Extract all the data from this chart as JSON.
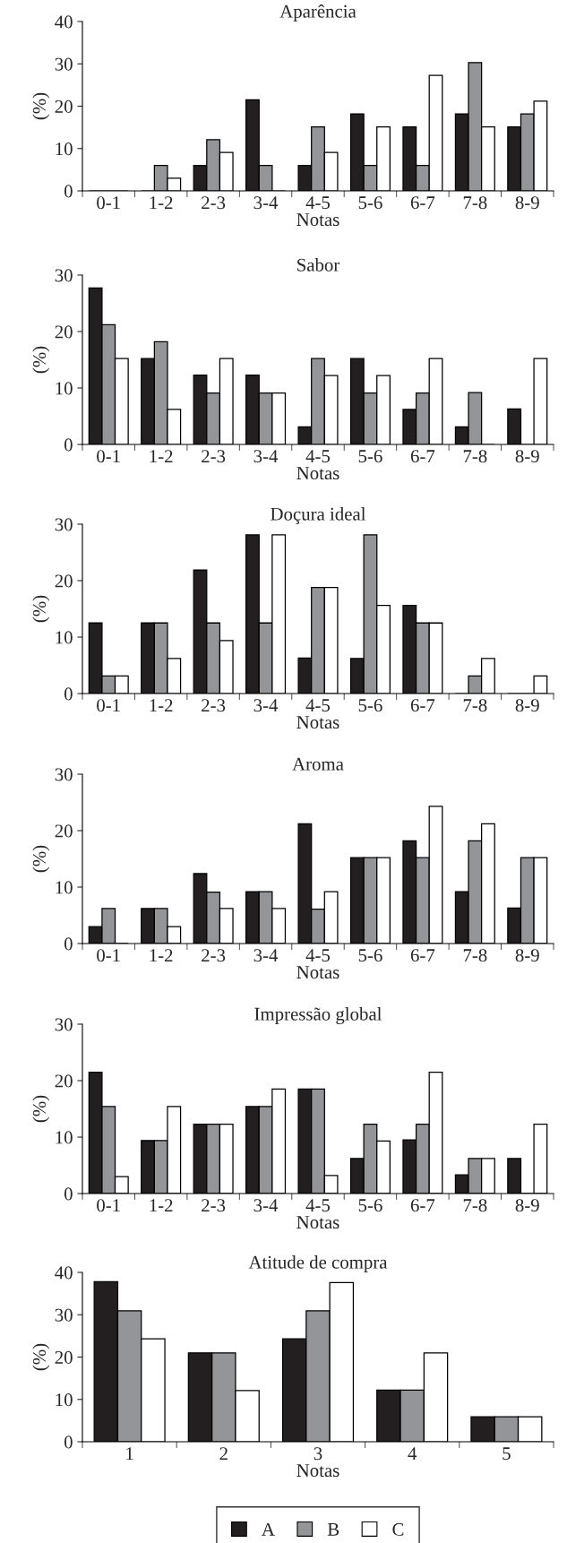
{
  "chart_data": [
    {
      "type": "bar",
      "title": "Aparência",
      "xlabel": "Notas",
      "ylabel": "(%)",
      "categories": [
        "0-1",
        "1-2",
        "2-3",
        "3-4",
        "4-5",
        "5-6",
        "6-7",
        "7-8",
        "8-9"
      ],
      "ylim": [
        0,
        40
      ],
      "yticks": [
        0,
        10,
        20,
        30,
        40
      ],
      "grid": false,
      "series": [
        {
          "color": "#231f20",
          "values": [
            0,
            0,
            6,
            21.5,
            6,
            18.2,
            15.1,
            18.2,
            15.1
          ]
        },
        {
          "color": "#939598",
          "values": [
            0,
            6,
            12.1,
            6,
            15.1,
            6,
            6,
            30.3,
            18.2
          ]
        },
        {
          "color": "#ffffff",
          "values": [
            0,
            3,
            9.1,
            0,
            9.1,
            15.1,
            27.3,
            15.1,
            21.2
          ]
        }
      ]
    },
    {
      "type": "bar",
      "title": "Sabor",
      "xlabel": "Notas",
      "ylabel": "(%)",
      "categories": [
        "0-1",
        "1-2",
        "2-3",
        "3-4",
        "4-5",
        "5-6",
        "6-7",
        "7-8",
        "8-9"
      ],
      "ylim": [
        0,
        30
      ],
      "yticks": [
        0,
        10,
        20,
        30
      ],
      "grid": false,
      "series": [
        {
          "color": "#231f20",
          "values": [
            27.7,
            15.2,
            12.3,
            12.3,
            3.1,
            15.2,
            6.2,
            3.1,
            6.3
          ]
        },
        {
          "color": "#939598",
          "values": [
            21.2,
            18.2,
            9.1,
            9.1,
            15.2,
            9.1,
            9.1,
            9.2,
            0
          ]
        },
        {
          "color": "#ffffff",
          "values": [
            15.2,
            6.2,
            15.2,
            9.1,
            12.2,
            12.2,
            15.2,
            0,
            15.2
          ]
        }
      ]
    },
    {
      "type": "bar",
      "title": "Doçura ideal",
      "xlabel": "Notas",
      "ylabel": "(%)",
      "categories": [
        "0-1",
        "1-2",
        "2-3",
        "3-4",
        "4-5",
        "5-6",
        "6-7",
        "7-8",
        "8-9"
      ],
      "ylim": [
        0,
        30
      ],
      "yticks": [
        0,
        10,
        20,
        30
      ],
      "grid": false,
      "series": [
        {
          "color": "#231f20",
          "values": [
            12.5,
            12.5,
            21.9,
            28.1,
            6.3,
            6.2,
            15.6,
            0,
            0
          ]
        },
        {
          "color": "#939598",
          "values": [
            3.1,
            12.5,
            12.5,
            12.5,
            18.8,
            28.1,
            12.5,
            3.1,
            0
          ]
        },
        {
          "color": "#ffffff",
          "values": [
            3.1,
            6.2,
            9.4,
            28.1,
            18.8,
            15.6,
            12.5,
            6.2,
            3.1
          ]
        }
      ]
    },
    {
      "type": "bar",
      "title": "Aroma",
      "xlabel": "Notas",
      "ylabel": "(%)",
      "categories": [
        "0-1",
        "1-2",
        "2-3",
        "3-4",
        "4-5",
        "5-6",
        "6-7",
        "7-8",
        "8-9"
      ],
      "ylim": [
        0,
        30
      ],
      "yticks": [
        0,
        10,
        20,
        30
      ],
      "grid": false,
      "series": [
        {
          "color": "#231f20",
          "values": [
            3,
            6.2,
            12.4,
            9.2,
            21.2,
            15.2,
            18.2,
            9.2,
            6.3
          ]
        },
        {
          "color": "#939598",
          "values": [
            6.2,
            6.2,
            9.1,
            9.2,
            6.1,
            15.2,
            15.2,
            18.2,
            15.2
          ]
        },
        {
          "color": "#ffffff",
          "values": [
            0,
            3,
            6.2,
            6.2,
            9.2,
            15.2,
            24.3,
            21.2,
            15.2
          ]
        }
      ]
    },
    {
      "type": "bar",
      "title": "Impressão global",
      "xlabel": "Notas",
      "ylabel": "(%)",
      "categories": [
        "0-1",
        "1-2",
        "2-3",
        "3-4",
        "4-5",
        "5-6",
        "6-7",
        "7-8",
        "8-9"
      ],
      "ylim": [
        0,
        30
      ],
      "yticks": [
        0,
        10,
        20,
        30
      ],
      "grid": false,
      "series": [
        {
          "color": "#231f20",
          "values": [
            21.5,
            9.4,
            12.3,
            15.4,
            18.5,
            6.2,
            9.5,
            3.3,
            6.2
          ]
        },
        {
          "color": "#939598",
          "values": [
            15.4,
            9.4,
            12.3,
            15.4,
            18.5,
            12.3,
            12.3,
            6.2,
            0
          ]
        },
        {
          "color": "#ffffff",
          "values": [
            3,
            15.4,
            12.3,
            18.5,
            3.2,
            9.3,
            21.5,
            6.2,
            12.3
          ]
        }
      ]
    },
    {
      "type": "bar",
      "title": "Atitude de compra",
      "xlabel": "Notas",
      "ylabel": "(%)",
      "categories": [
        "1",
        "2",
        "3",
        "4",
        "5"
      ],
      "ylim": [
        0,
        40
      ],
      "yticks": [
        0,
        10,
        20,
        30,
        40
      ],
      "grid": false,
      "legend": "bottom",
      "series": [
        {
          "name": "A",
          "color": "#231f20",
          "values": [
            37.8,
            21,
            24.3,
            12.2,
            5.9
          ]
        },
        {
          "name": "B",
          "color": "#939598",
          "values": [
            30.9,
            21,
            30.9,
            12.2,
            5.9
          ]
        },
        {
          "name": "C",
          "color": "#ffffff",
          "values": [
            24.3,
            12.1,
            37.6,
            21,
            5.9
          ]
        }
      ]
    }
  ]
}
